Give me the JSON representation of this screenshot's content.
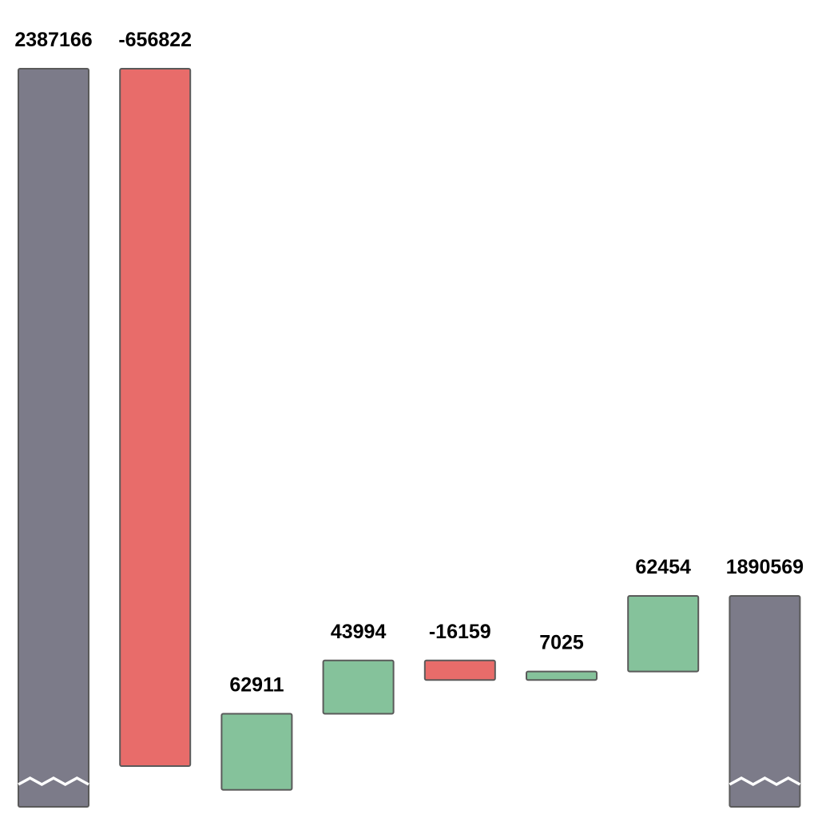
{
  "chart_data": {
    "type": "waterfall",
    "title": "",
    "xlabel": "",
    "ylabel": "",
    "axis_break": true,
    "show_axes": false,
    "grid": false,
    "items": [
      {
        "value": 2387166,
        "kind": "total",
        "label": "2387166"
      },
      {
        "value": -656822,
        "kind": "delta",
        "label": "-656822"
      },
      {
        "value": 62911,
        "kind": "delta",
        "label": "62911"
      },
      {
        "value": 43994,
        "kind": "delta",
        "label": "43994"
      },
      {
        "value": -16159,
        "kind": "delta",
        "label": "-16159"
      },
      {
        "value": 7025,
        "kind": "delta",
        "label": "7025"
      },
      {
        "value": 62454,
        "kind": "delta",
        "label": "62454"
      },
      {
        "value": 1890569,
        "kind": "total",
        "label": "1890569"
      }
    ],
    "colors": {
      "total": "#7c7b89",
      "increase": "#85c29b",
      "decrease": "#e86c6a",
      "outline": "#5a5a5a",
      "label": "#000000"
    }
  }
}
